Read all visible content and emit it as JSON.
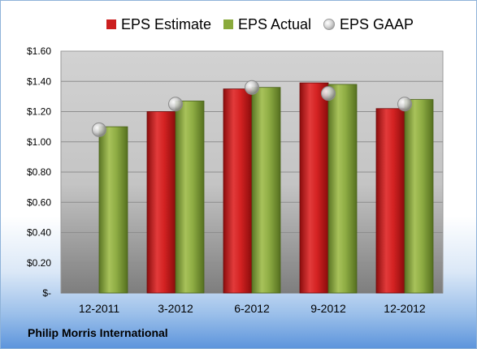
{
  "chart_data": {
    "type": "bar",
    "categories": [
      "12-2011",
      "3-2012",
      "6-2012",
      "9-2012",
      "12-2012"
    ],
    "series": [
      {
        "name": "EPS Estimate",
        "kind": "bar",
        "color": "#cc1f1f",
        "values": [
          null,
          1.2,
          1.35,
          1.39,
          1.22
        ]
      },
      {
        "name": "EPS Actual",
        "kind": "bar",
        "color": "#8aaa3c",
        "values": [
          1.1,
          1.27,
          1.36,
          1.38,
          1.28
        ]
      },
      {
        "name": "EPS GAAP",
        "kind": "marker",
        "color": "#b8b8b8",
        "values": [
          1.08,
          1.25,
          1.36,
          1.32,
          1.25
        ]
      }
    ],
    "y_ticks": [
      "$-",
      "$0.20",
      "$0.40",
      "$0.60",
      "$0.80",
      "$1.00",
      "$1.20",
      "$1.40",
      "$1.60"
    ],
    "ylim": [
      0,
      1.6
    ],
    "grid": true,
    "legend": "top"
  },
  "footer": {
    "company": "Philip Morris International"
  }
}
